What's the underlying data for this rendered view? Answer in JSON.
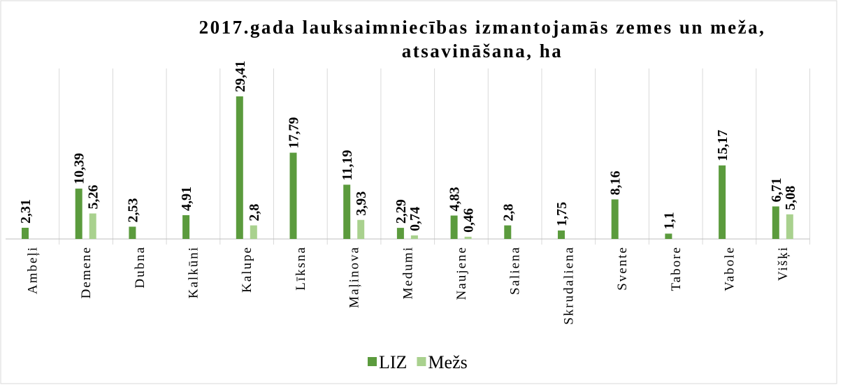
{
  "chart_data": {
    "type": "bar",
    "title": "2017.gada lauksaimniecības izmantojamās zemes un meža, atsavināšana, ha",
    "categories": [
      "Ambeļi",
      "Demene",
      "Dubna",
      "Kalkūni",
      "Kalupe",
      "Līksna",
      "Maļinova",
      "Medumi",
      "Naujene",
      "Saliena",
      "Skrudaliena",
      "Svente",
      "Tabore",
      "Vabole",
      "Višķi"
    ],
    "series": [
      {
        "name": "LIZ",
        "color": "#5b9b3d",
        "values": [
          2.31,
          10.39,
          2.53,
          4.91,
          29.41,
          17.79,
          11.19,
          2.29,
          4.83,
          2.8,
          1.75,
          8.16,
          1.1,
          15.17,
          6.71
        ],
        "value_labels": [
          "2,31",
          "10,39",
          "2,53",
          "4,91",
          "29,41",
          "17,79",
          "11,19",
          "2,29",
          "4,83",
          "2,8",
          "1,75",
          "8,16",
          "1,1",
          "15,17",
          "6,71"
        ]
      },
      {
        "name": "Mežs",
        "color": "#a9d18e",
        "values": [
          null,
          5.26,
          null,
          null,
          2.8,
          null,
          3.93,
          0.74,
          0.46,
          null,
          null,
          null,
          null,
          null,
          5.08
        ],
        "value_labels": [
          null,
          "5,26",
          null,
          null,
          "2,8",
          null,
          "3,93",
          "0,74",
          "0,46",
          null,
          null,
          null,
          null,
          null,
          "5,08"
        ]
      }
    ],
    "legend": "bottom"
  }
}
